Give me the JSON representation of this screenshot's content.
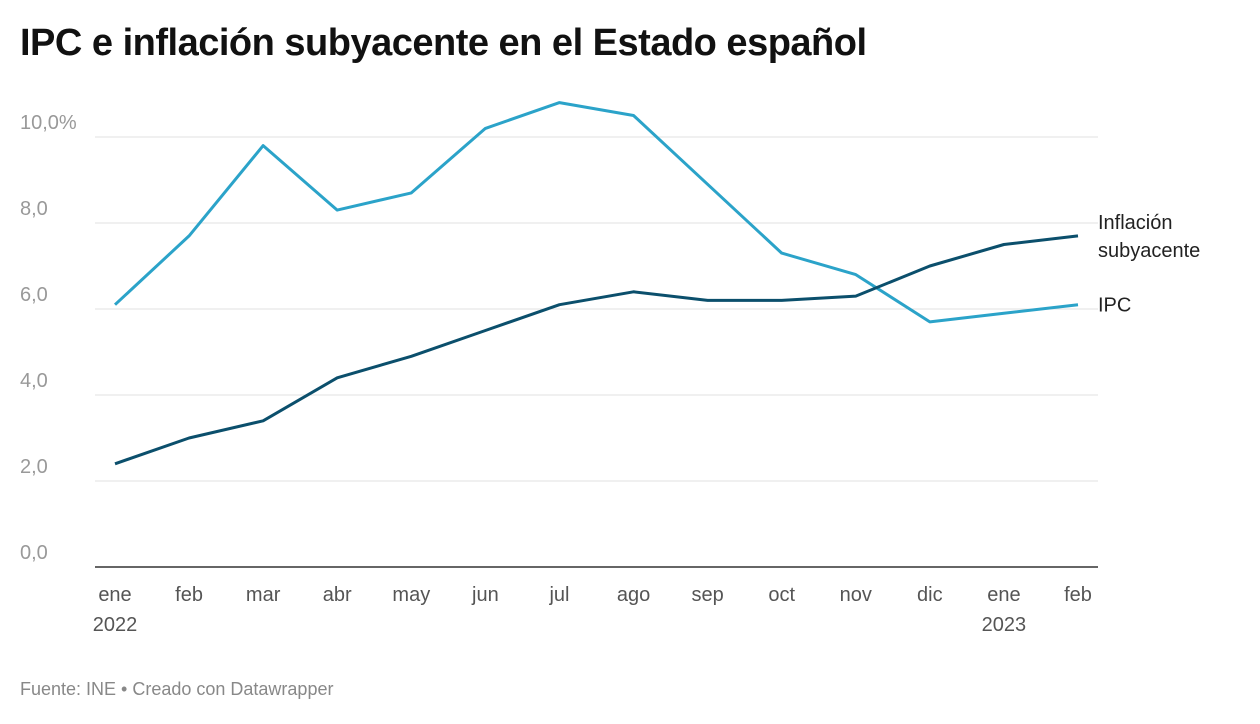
{
  "title": "IPC e inflación subyacente en el Estado español",
  "source": "Fuente: INE • Creado con Datawrapper",
  "chart_data": {
    "type": "line",
    "title": "IPC e inflación subyacente en el Estado español",
    "categories": [
      "ene",
      "feb",
      "mar",
      "abr",
      "may",
      "jun",
      "jul",
      "ago",
      "sep",
      "oct",
      "nov",
      "dic",
      "ene",
      "feb"
    ],
    "year_labels": {
      "0": "2022",
      "12": "2023"
    },
    "y_ticks": [
      "0,0",
      "2,0",
      "4,0",
      "6,0",
      "8,0",
      "10,0%"
    ],
    "ylim": [
      0,
      10
    ],
    "grid": true,
    "legend": "direct labels at right",
    "series": [
      {
        "name": "IPC",
        "color": "#2ba3c9",
        "values": [
          6.1,
          7.7,
          9.8,
          8.3,
          8.7,
          10.2,
          10.8,
          10.5,
          8.9,
          7.3,
          6.8,
          5.7,
          5.9,
          6.1
        ]
      },
      {
        "name": "Inflación subyacente",
        "label_lines": [
          "Inflación",
          "subyacente"
        ],
        "color": "#0b4f6c",
        "values": [
          2.4,
          3.0,
          3.4,
          4.4,
          4.9,
          5.5,
          6.1,
          6.4,
          6.2,
          6.2,
          6.3,
          7.0,
          7.5,
          7.7
        ]
      }
    ]
  }
}
